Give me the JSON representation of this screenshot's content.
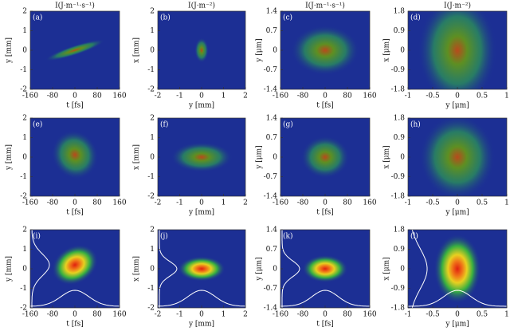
{
  "chart_data": [
    {
      "type": "heatmap",
      "label": "(a)",
      "title": "I(J·m⁻¹·s⁻¹)",
      "xlabel": "t [fs]",
      "ylabel": "y [mm]",
      "xlim": [
        -160,
        160
      ],
      "xticks": [
        -160,
        -80,
        0,
        80,
        160
      ],
      "ylim": [
        -2,
        2
      ],
      "yticks": [
        -2,
        -1,
        0,
        1,
        2
      ]
    },
    {
      "type": "heatmap",
      "label": "(b)",
      "title": "I(J·m⁻²)",
      "xlabel": "y [mm]",
      "ylabel": "x [mm]",
      "xlim": [
        -2,
        2
      ],
      "xticks": [
        -2,
        -1,
        0,
        1,
        2
      ],
      "ylim": [
        -2,
        2
      ],
      "yticks": [
        -2,
        -1,
        0,
        1,
        2
      ]
    },
    {
      "type": "heatmap",
      "label": "(c)",
      "title": "I(J·m⁻¹·s⁻¹)",
      "xlabel": "t [fs]",
      "ylabel": "y [μm]",
      "xlim": [
        -160,
        160
      ],
      "xticks": [
        -160,
        -80,
        0,
        80,
        160
      ],
      "ylim": [
        -1.4,
        1.4
      ],
      "yticks": [
        -1.4,
        -0.7,
        0,
        0.7,
        1.4
      ]
    },
    {
      "type": "heatmap",
      "label": "(d)",
      "title": "I(J·m⁻²)",
      "xlabel": "y [μm]",
      "ylabel": "x [μm]",
      "xlim": [
        -1,
        1
      ],
      "xticks": [
        -1,
        -0.5,
        0,
        0.5,
        1
      ],
      "ylim": [
        -1.8,
        1.8
      ],
      "yticks": [
        -1.8,
        -0.9,
        0,
        0.9,
        1.8
      ]
    },
    {
      "type": "heatmap",
      "label": "(e)",
      "xlabel": "t [fs]",
      "ylabel": "y [mm]",
      "xlim": [
        -160,
        160
      ],
      "xticks": [
        -160,
        -80,
        0,
        80,
        160
      ],
      "ylim": [
        -2,
        2
      ],
      "yticks": [
        -2,
        -1,
        0,
        1,
        2
      ]
    },
    {
      "type": "heatmap",
      "label": "(f)",
      "xlabel": "y [mm]",
      "ylabel": "x [mm]",
      "xlim": [
        -2,
        2
      ],
      "xticks": [
        -2,
        -1,
        0,
        1,
        2
      ],
      "ylim": [
        -2,
        2
      ],
      "yticks": [
        -2,
        -1,
        0,
        1,
        2
      ]
    },
    {
      "type": "heatmap",
      "label": "(g)",
      "xlabel": "t [fs]",
      "ylabel": "y [μm]",
      "xlim": [
        -160,
        160
      ],
      "xticks": [
        -160,
        -80,
        0,
        80,
        160
      ],
      "ylim": [
        -1.4,
        1.4
      ],
      "yticks": [
        -1.4,
        -0.7,
        0,
        0.7,
        1.4
      ]
    },
    {
      "type": "heatmap",
      "label": "(h)",
      "xlabel": "y [μm]",
      "ylabel": "x [μm]",
      "xlim": [
        -1,
        1
      ],
      "xticks": [
        -1,
        -0.5,
        0,
        0.5,
        1
      ],
      "ylim": [
        -1.8,
        1.8
      ],
      "yticks": [
        -1.8,
        -0.9,
        0,
        0.9,
        1.8
      ]
    },
    {
      "type": "heatmap",
      "label": "(i)",
      "xlabel": "t [fs]",
      "ylabel": "y [mm]",
      "xlim": [
        -160,
        160
      ],
      "xticks": [
        -160,
        -80,
        0,
        80,
        160
      ],
      "ylim": [
        -2,
        2
      ],
      "yticks": [
        -2,
        -1,
        0,
        1,
        2
      ]
    },
    {
      "type": "heatmap",
      "label": "(j)",
      "xlabel": "y [mm]",
      "ylabel": "x [mm]",
      "xlim": [
        -2,
        2
      ],
      "xticks": [
        -2,
        -1,
        0,
        1,
        2
      ],
      "ylim": [
        -2,
        2
      ],
      "yticks": [
        -2,
        -1,
        0,
        1,
        2
      ]
    },
    {
      "type": "heatmap",
      "label": "(k)",
      "xlabel": "t [fs]",
      "ylabel": "y [μm]",
      "xlim": [
        -160,
        160
      ],
      "xticks": [
        -160,
        -80,
        0,
        80,
        160
      ],
      "ylim": [
        -1.4,
        1.4
      ],
      "yticks": [
        -1.4,
        -0.7,
        0,
        0.7,
        1.4
      ]
    },
    {
      "type": "heatmap",
      "label": "(l)",
      "xlabel": "y [μm]",
      "ylabel": "x [μm]",
      "xlim": [
        -1,
        1
      ],
      "xticks": [
        -1,
        -0.5,
        0,
        0.5,
        1
      ],
      "ylim": [
        -1.8,
        1.8
      ],
      "yticks": [
        -1.8,
        -0.9,
        0,
        0.9,
        1.8
      ]
    }
  ]
}
